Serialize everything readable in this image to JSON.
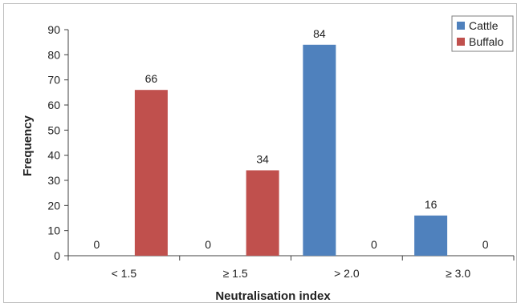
{
  "chart_data": {
    "type": "bar",
    "title": "",
    "xlabel": "Neutralisation index",
    "ylabel": "Frequency",
    "categories": [
      "< 1.5",
      "≥ 1.5",
      "> 2.0",
      "≥ 3.0"
    ],
    "series": [
      {
        "name": "Cattle",
        "color": "#4f81bd",
        "values": [
          0,
          0,
          84,
          16
        ]
      },
      {
        "name": "Buffalo",
        "color": "#c0504d",
        "values": [
          66,
          34,
          0,
          0
        ]
      }
    ],
    "ylim": [
      0,
      90
    ],
    "yticks": [
      0,
      10,
      20,
      30,
      40,
      50,
      60,
      70,
      80,
      90
    ],
    "grid": false,
    "legend_position": "top-right"
  }
}
